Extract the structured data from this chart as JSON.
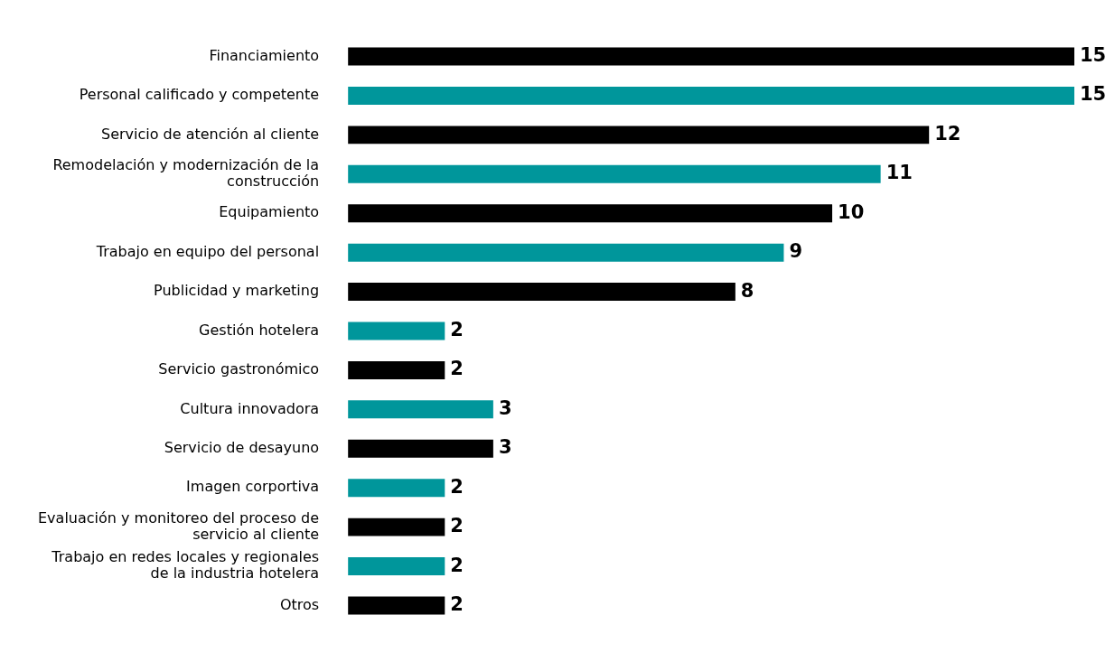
{
  "chart_data": {
    "type": "bar",
    "orientation": "horizontal",
    "categories": [
      "Financiamiento",
      "Personal calificado y competente",
      "Servicio de atención al cliente",
      "Remodelación y modernización de la construcción",
      "Equipamiento",
      "Trabajo en equipo del personal",
      "Publicidad y marketing",
      "Gestión hotelera",
      "Servicio gastronómico",
      "Cultura innovadora",
      "Servicio de desayuno",
      "Imagen corportiva",
      "Evaluación y monitoreo del proceso de servicio al cliente",
      "Trabajo en redes locales y regionales de la industria hotelera",
      "Otros"
    ],
    "values": [
      15,
      15,
      12,
      11,
      10,
      9,
      8,
      2,
      2,
      3,
      3,
      2,
      2,
      2,
      2
    ],
    "colors": [
      "#000000",
      "#00969b",
      "#000000",
      "#00969b",
      "#000000",
      "#00969b",
      "#000000",
      "#00969b",
      "#000000",
      "#00969b",
      "#000000",
      "#00969b",
      "#000000",
      "#00969b",
      "#000000"
    ],
    "xlim": [
      0,
      15
    ],
    "tick_labels": "y",
    "grid": false,
    "legend": false,
    "data_labels": true
  }
}
